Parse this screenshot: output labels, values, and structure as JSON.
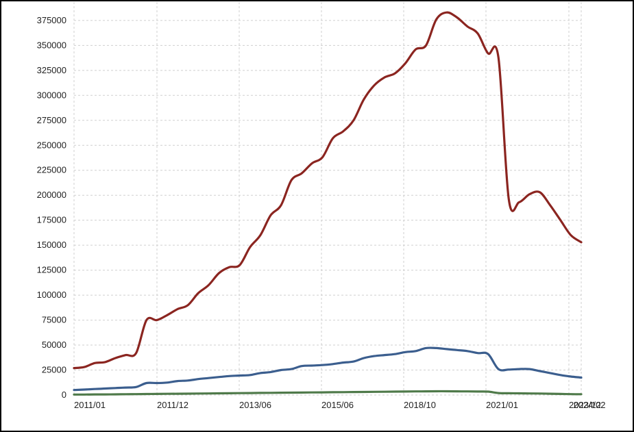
{
  "chart_data": {
    "type": "line",
    "title": "",
    "xlabel": "",
    "ylabel": "",
    "ylim": [
      0,
      390000
    ],
    "yticks": [
      0,
      25000,
      50000,
      75000,
      100000,
      125000,
      150000,
      175000,
      200000,
      225000,
      250000,
      275000,
      300000,
      325000,
      350000,
      375000
    ],
    "x_tick_labels": [
      "2011/01",
      "2011/12",
      "2013/06",
      "2015/06",
      "2018/10",
      "2021/01",
      "2023/12",
      "2024/02"
    ],
    "grid": true,
    "legend": "none",
    "x": [
      "2011/01",
      "2011/04",
      "2011/07",
      "2011/10",
      "2011/12",
      "2012/03",
      "2012/06",
      "2012/09",
      "2013/01",
      "2013/06",
      "2013/09",
      "2014/01",
      "2014/04",
      "2014/07",
      "2014/10",
      "2015/01",
      "2015/03",
      "2015/06",
      "2015/09",
      "2016/01",
      "2016/06",
      "2016/10",
      "2017/01",
      "2017/06",
      "2017/10",
      "2018/01",
      "2018/04",
      "2018/07",
      "2018/10",
      "2019/01",
      "2019/04",
      "2019/07",
      "2019/10",
      "2020/01",
      "2020/04",
      "2020/07",
      "2020/10",
      "2021/01",
      "2021/04",
      "2021/07",
      "2021/10",
      "2022/01",
      "2022/04",
      "2022/07",
      "2022/10",
      "2023/01",
      "2023/04",
      "2023/07",
      "2023/12",
      "2024/02"
    ],
    "series": [
      {
        "color": "#8b2520",
        "values": [
          27000,
          28000,
          32000,
          33000,
          37000,
          40000,
          42000,
          75000,
          75000,
          80000,
          86000,
          90000,
          102000,
          110000,
          122000,
          128000,
          130000,
          148000,
          160000,
          180000,
          190000,
          215000,
          222000,
          232000,
          238000,
          257000,
          264000,
          275000,
          296000,
          310000,
          318000,
          322000,
          332000,
          346000,
          350000,
          376000,
          383000,
          378000,
          369000,
          362000,
          342000,
          338000,
          196000,
          193000,
          201000,
          203000,
          190000,
          175000,
          160000,
          153000
        ]
      },
      {
        "color": "#3b5e8e",
        "values": [
          5000,
          5500,
          6000,
          6500,
          7000,
          7500,
          8000,
          12000,
          12000,
          12500,
          14000,
          14500,
          16000,
          17000,
          18000,
          19000,
          19500,
          20000,
          22000,
          23000,
          25000,
          26000,
          29000,
          29500,
          30000,
          31000,
          32500,
          33500,
          37000,
          39000,
          40000,
          41000,
          43000,
          44000,
          47000,
          47000,
          46000,
          45000,
          44000,
          42000,
          41000,
          26000,
          25500,
          26000,
          26000,
          24000,
          22000,
          20000,
          18500,
          17500
        ]
      },
      {
        "color": "#4f7a4a",
        "values": [
          500,
          500,
          600,
          600,
          700,
          800,
          900,
          1000,
          1100,
          1200,
          1300,
          1400,
          1500,
          1600,
          1700,
          1800,
          1900,
          2000,
          2100,
          2200,
          2300,
          2400,
          2500,
          2600,
          2700,
          2800,
          2900,
          3000,
          3100,
          3200,
          3300,
          3400,
          3500,
          3600,
          3700,
          3800,
          3800,
          3700,
          3600,
          3500,
          3400,
          2000,
          1800,
          1700,
          1600,
          1500,
          1300,
          1100,
          900,
          800
        ]
      }
    ]
  }
}
